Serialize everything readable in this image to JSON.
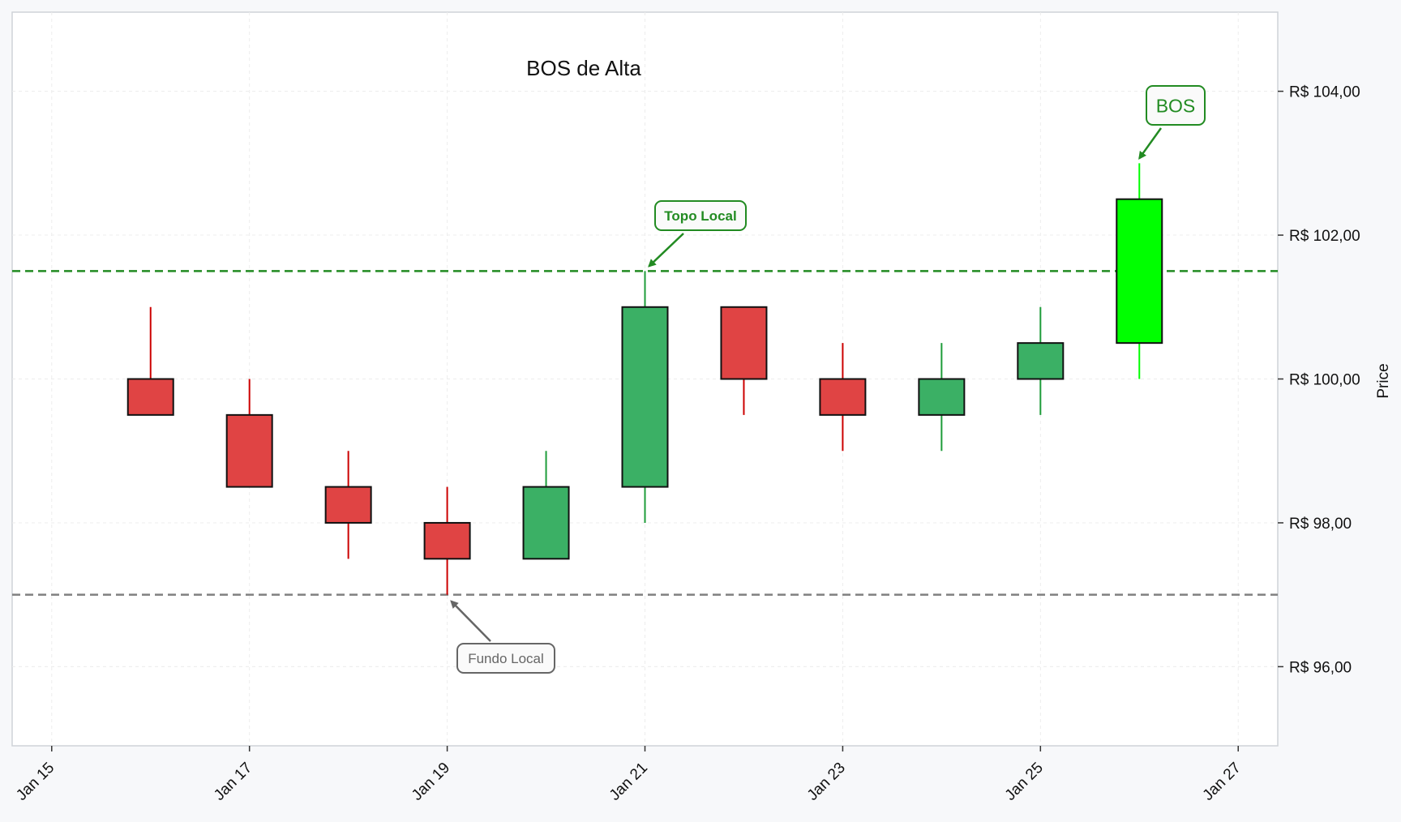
{
  "chart_data": {
    "type": "candlestick",
    "title": "BOS de Alta",
    "xlabel": "",
    "ylabel": "Price",
    "x_tick_labels": [
      "Jan 15",
      "Jan 17",
      "Jan 19",
      "Jan 21",
      "Jan 23",
      "Jan 25",
      "Jan 27"
    ],
    "y_tick_labels": [
      "R$ 96,00",
      "R$ 98,00",
      "R$ 100,00",
      "R$ 102,00",
      "R$ 104,00"
    ],
    "x_range": [
      "2024-01-14.6",
      "2024-01-27.4"
    ],
    "ylim": [
      94.9,
      105.1
    ],
    "grid": true,
    "y_axis_position": "right",
    "candles": [
      {
        "date": "Jan 16",
        "open": 100.0,
        "high": 101.0,
        "low": 99.5,
        "close": 99.5,
        "color": "#e04444"
      },
      {
        "date": "Jan 17",
        "open": 99.5,
        "high": 100.0,
        "low": 98.5,
        "close": 98.5,
        "color": "#e04444"
      },
      {
        "date": "Jan 18",
        "open": 98.5,
        "high": 99.0,
        "low": 97.5,
        "close": 98.0,
        "color": "#e04444"
      },
      {
        "date": "Jan 19",
        "open": 98.0,
        "high": 98.5,
        "low": 97.0,
        "close": 97.5,
        "color": "#e04444"
      },
      {
        "date": "Jan 20",
        "open": 97.5,
        "high": 99.0,
        "low": 97.5,
        "close": 98.5,
        "color": "#3bb065"
      },
      {
        "date": "Jan 21",
        "open": 98.5,
        "high": 101.5,
        "low": 98.0,
        "close": 101.0,
        "color": "#3bb065"
      },
      {
        "date": "Jan 22",
        "open": 101.0,
        "high": 101.0,
        "low": 99.5,
        "close": 100.0,
        "color": "#e04444"
      },
      {
        "date": "Jan 23",
        "open": 100.0,
        "high": 100.5,
        "low": 99.0,
        "close": 99.5,
        "color": "#e04444"
      },
      {
        "date": "Jan 24",
        "open": 99.5,
        "high": 100.5,
        "low": 99.0,
        "close": 100.0,
        "color": "#3bb065"
      },
      {
        "date": "Jan 25",
        "open": 100.0,
        "high": 101.0,
        "low": 99.5,
        "close": 100.5,
        "color": "#3bb065"
      },
      {
        "date": "Jan 26",
        "open": 100.5,
        "high": 103.0,
        "low": 100.0,
        "close": 102.5,
        "color": "#00ff00"
      }
    ],
    "horizontal_lines": [
      {
        "value": 101.5,
        "color": "#228b22",
        "style": "dashed"
      },
      {
        "value": 97.0,
        "color": "#808080",
        "style": "dashed"
      }
    ],
    "annotations": [
      {
        "text": "Topo Local",
        "point_date": "Jan 21",
        "point_value": 101.5,
        "color": "#228b22"
      },
      {
        "text": "Fundo Local",
        "point_date": "Jan 19",
        "point_value": 97.0,
        "color": "#666666"
      },
      {
        "text": "BOS",
        "point_date": "Jan 26",
        "point_value": 103.0,
        "color": "#228b22"
      }
    ],
    "colors": {
      "bearish": "#e04444",
      "bullish": "#3bb065",
      "breakout": "#00ff00",
      "wick_bearish": "#cc0000",
      "wick_bullish": "#1e9c3a"
    }
  }
}
